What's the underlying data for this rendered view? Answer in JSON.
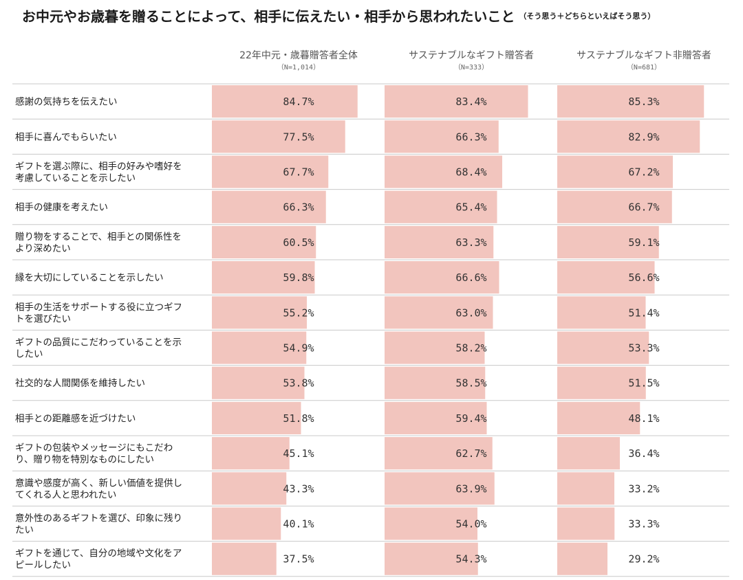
{
  "title": "お中元やお歳暮を贈ることによって、相手に伝えたい・相手から思われたいこと",
  "subtitle": "（そう思う＋どちらといえばそう思う）",
  "colors": {
    "bar": "#f2c5be",
    "row_line": "#c8c8c8",
    "text": "#222222"
  },
  "chart_data": {
    "type": "bar",
    "orientation": "horizontal",
    "unit": "%",
    "xlim": [
      0,
      100
    ],
    "grid": false,
    "legend": "none",
    "categories": [
      [
        "感謝の気持ちを伝えたい"
      ],
      [
        "相手に喜んでもらいたい"
      ],
      [
        "ギフトを選ぶ際に、相手の好みや嗜好を",
        "考慮していることを示したい"
      ],
      [
        "相手の健康を考えたい"
      ],
      [
        "贈り物をすることで、相手との関係性を",
        "より深めたい"
      ],
      [
        "縁を大切にしていることを示したい"
      ],
      [
        "相手の生活をサポートする役に立つギフ",
        "トを選びたい"
      ],
      [
        "ギフトの品質にこだわっていることを示",
        "したい"
      ],
      [
        "社交的な人間関係を維持したい"
      ],
      [
        "相手との距離感を近づけたい"
      ],
      [
        "ギフトの包装やメッセージにもこだわ",
        "り、贈り物を特別なものにしたい"
      ],
      [
        "意識や感度が高く、新しい価値を提供し",
        "てくれる人と思われたい"
      ],
      [
        "意外性のあるギフトを選び、印象に残り",
        "たい"
      ],
      [
        "ギフトを通じて、自分の地域や文化をア",
        "ピールしたい"
      ]
    ],
    "series": [
      {
        "name": "22年中元・歳暮贈答者全体",
        "n_label": "（N=1,014）",
        "values": [
          84.7,
          77.5,
          67.7,
          66.3,
          60.5,
          59.8,
          55.2,
          54.9,
          53.8,
          51.8,
          45.1,
          43.3,
          40.1,
          37.5
        ],
        "labels": [
          "84.7%",
          "77.5%",
          "67.7%",
          "66.3%",
          "60.5%",
          "59.8%",
          "55.2%",
          "54.9%",
          "53.8%",
          "51.8%",
          "45.1%",
          "43.3%",
          "40.1%",
          "37.5%"
        ]
      },
      {
        "name": "サステナブルなギフト贈答者",
        "n_label": "（N=333）",
        "values": [
          83.4,
          66.3,
          68.4,
          65.4,
          63.3,
          66.6,
          63.0,
          58.2,
          58.5,
          59.4,
          62.7,
          63.9,
          54.0,
          54.3
        ],
        "labels": [
          "83.4%",
          "66.3%",
          "68.4%",
          "65.4%",
          "63.3%",
          "66.6%",
          "63.0%",
          "58.2%",
          "58.5%",
          "59.4%",
          "62.7%",
          "63.9%",
          "54.0%",
          "54.3%"
        ]
      },
      {
        "name": "サステナブルなギフト非贈答者",
        "n_label": "（N=681）",
        "values": [
          85.3,
          82.9,
          67.2,
          66.7,
          59.1,
          56.6,
          51.4,
          53.3,
          51.5,
          48.1,
          36.4,
          33.2,
          33.3,
          29.2
        ],
        "labels": [
          "85.3%",
          "82.9%",
          "67.2%",
          "66.7%",
          "59.1%",
          "56.6%",
          "51.4%",
          "53.3%",
          "51.5%",
          "48.1%",
          "36.4%",
          "33.2%",
          "33.3%",
          "29.2%"
        ]
      }
    ]
  }
}
